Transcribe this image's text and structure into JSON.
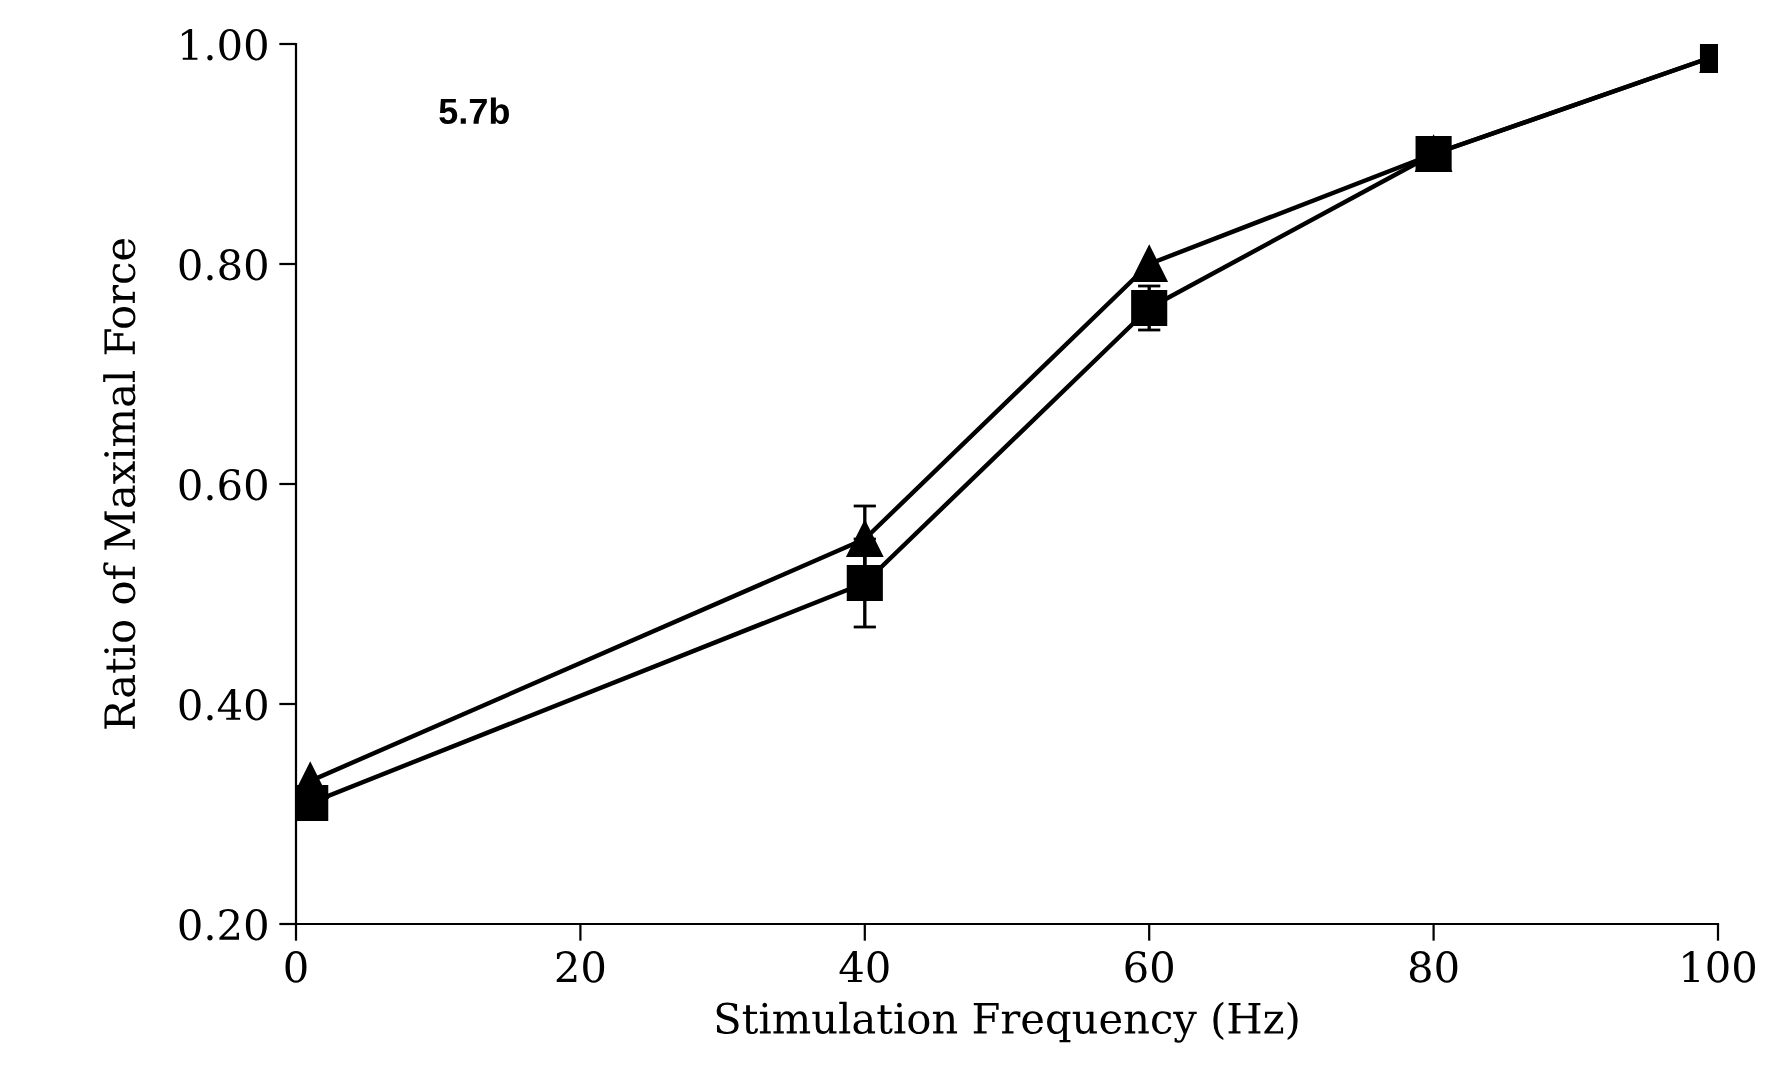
{
  "chart_data": {
    "type": "line",
    "xlabel": "Stimulation Frequency (Hz)",
    "ylabel": "Ratio of Maximal Force",
    "annotations": [
      "5.7b"
    ],
    "x": [
      1,
      40,
      60,
      80,
      100
    ],
    "series": [
      {
        "color": "#000000",
        "marker": "triangle",
        "values": [
          0.33,
          0.55,
          0.8,
          0.9,
          0.99
        ],
        "errors": [
          null,
          0.03,
          null,
          null,
          null
        ]
      },
      {
        "color": "#000000",
        "marker": "square",
        "values": [
          0.31,
          0.51,
          0.76,
          0.9,
          0.99
        ],
        "errors": [
          null,
          0.04,
          0.02,
          null,
          null
        ]
      }
    ],
    "xlim": [
      0,
      100
    ],
    "ylim": [
      0.2,
      1.0
    ],
    "xticks": [
      0,
      20,
      40,
      60,
      80,
      100
    ],
    "yticks": [
      {
        "value": 0.2,
        "label": "0.20"
      },
      {
        "value": 0.4,
        "label": "0.40"
      },
      {
        "value": 0.6,
        "label": "0.60"
      },
      {
        "value": 0.8,
        "label": "0.80"
      },
      {
        "value": 1.0,
        "label": "1.00"
      }
    ],
    "grid": false,
    "legend": false,
    "line_style": "solid"
  }
}
